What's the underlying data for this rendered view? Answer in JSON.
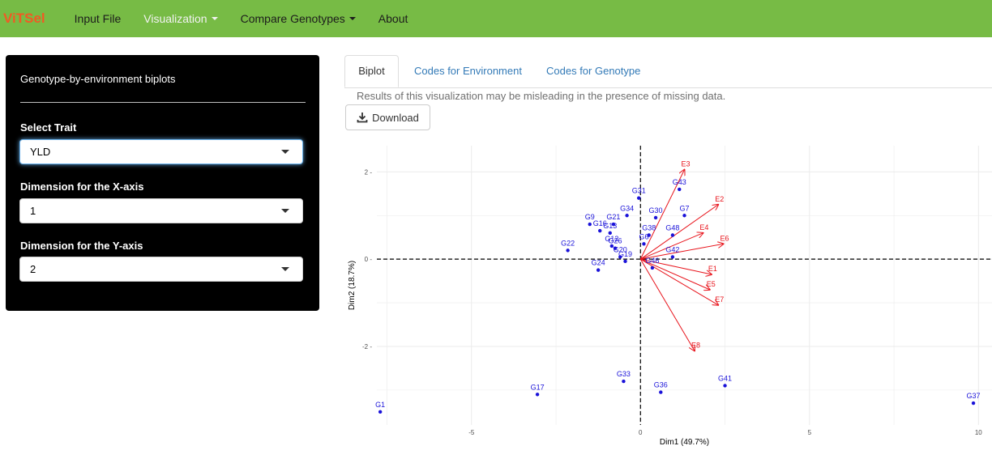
{
  "navbar": {
    "brand": "ViTSel",
    "items": [
      {
        "label": "Input File"
      },
      {
        "label": "Visualization"
      },
      {
        "label": "Compare Genotypes"
      },
      {
        "label": "About"
      }
    ]
  },
  "sidebar": {
    "title": "Genotype-by-environment biplots",
    "trait_label": "Select Trait",
    "trait_value": "YLD",
    "xdim_label": "Dimension for the X-axis",
    "xdim_value": "1",
    "ydim_label": "Dimension for the Y-axis",
    "ydim_value": "2"
  },
  "tabs": [
    {
      "label": "Biplot"
    },
    {
      "label": "Codes for Environment"
    },
    {
      "label": "Codes for Genotype"
    }
  ],
  "notice": "Results of this visualization may be misleading in the presence of missing data.",
  "download_label": "Download",
  "colors": {
    "navbar": "#77bb45",
    "brand": "#f15a24",
    "genotype": "#1a12d9",
    "environment": "#e8141c"
  },
  "chart_data": {
    "type": "scatter",
    "title": "",
    "xlabel": "Dim1 (49.7%)",
    "ylabel": "Dim2 (18.7%)",
    "xlim": [
      -7.8,
      10.4
    ],
    "ylim": [
      -3.8,
      2.6
    ],
    "x_ticks": [
      -5,
      0,
      5,
      10
    ],
    "y_ticks": [
      -2,
      0,
      2
    ],
    "grid": true,
    "genotypes": [
      {
        "name": "G1",
        "x": -7.7,
        "y": -3.5
      },
      {
        "name": "G17",
        "x": -3.05,
        "y": -3.1
      },
      {
        "name": "G33",
        "x": -0.5,
        "y": -2.8
      },
      {
        "name": "G36",
        "x": 0.6,
        "y": -3.05
      },
      {
        "name": "G41",
        "x": 2.5,
        "y": -2.9
      },
      {
        "name": "G37",
        "x": 9.85,
        "y": -3.3
      },
      {
        "name": "G22",
        "x": -2.15,
        "y": 0.2
      },
      {
        "name": "G24",
        "x": -1.25,
        "y": -0.25
      },
      {
        "name": "G9",
        "x": -1.5,
        "y": 0.8
      },
      {
        "name": "G16",
        "x": -1.2,
        "y": 0.65
      },
      {
        "name": "G21",
        "x": -0.8,
        "y": 0.8
      },
      {
        "name": "G34",
        "x": -0.4,
        "y": 1.0
      },
      {
        "name": "G31",
        "x": -0.05,
        "y": 1.4
      },
      {
        "name": "G43",
        "x": 1.15,
        "y": 1.6
      },
      {
        "name": "G7",
        "x": 1.3,
        "y": 1.0
      },
      {
        "name": "G30",
        "x": 0.45,
        "y": 0.95
      },
      {
        "name": "G13",
        "x": -0.9,
        "y": 0.6
      },
      {
        "name": "G12",
        "x": -0.85,
        "y": 0.3
      },
      {
        "name": "G26",
        "x": -0.75,
        "y": 0.25
      },
      {
        "name": "G20",
        "x": -0.6,
        "y": 0.05
      },
      {
        "name": "G19",
        "x": -0.45,
        "y": -0.05
      },
      {
        "name": "G42",
        "x": 0.95,
        "y": 0.05
      },
      {
        "name": "G46",
        "x": 0.35,
        "y": -0.2
      },
      {
        "name": "G38",
        "x": 0.25,
        "y": 0.55
      },
      {
        "name": "G48",
        "x": 0.95,
        "y": 0.55
      },
      {
        "name": "G6",
        "x": 0.1,
        "y": 0.35
      }
    ],
    "environments": [
      {
        "name": "E1",
        "x": 2.1,
        "y": -0.35
      },
      {
        "name": "E2",
        "x": 2.3,
        "y": 1.25
      },
      {
        "name": "E3",
        "x": 1.3,
        "y": 2.05
      },
      {
        "name": "E4",
        "x": 1.85,
        "y": 0.6
      },
      {
        "name": "E5",
        "x": 2.05,
        "y": -0.7
      },
      {
        "name": "E6",
        "x": 2.45,
        "y": 0.35
      },
      {
        "name": "E7",
        "x": 2.3,
        "y": -1.05
      },
      {
        "name": "E8",
        "x": 1.6,
        "y": -2.1
      }
    ]
  }
}
